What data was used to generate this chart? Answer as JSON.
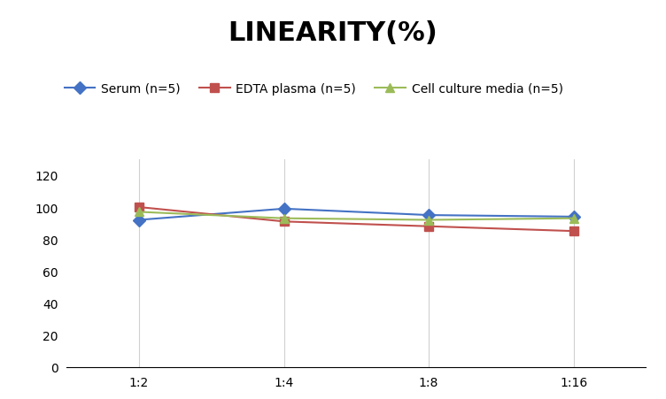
{
  "title": "LINEARITY(%)",
  "x_labels": [
    "1:2",
    "1:4",
    "1:8",
    "1:16"
  ],
  "x_positions": [
    0,
    1,
    2,
    3
  ],
  "series": [
    {
      "label": "Serum (n=5)",
      "values": [
        92,
        99,
        95,
        94
      ],
      "color": "#4472C4",
      "marker": "D",
      "markersize": 7,
      "linewidth": 1.5
    },
    {
      "label": "EDTA plasma (n=5)",
      "values": [
        100,
        91,
        88,
        85
      ],
      "color": "#C0504D",
      "marker": "s",
      "markersize": 7,
      "linewidth": 1.5
    },
    {
      "label": "Cell culture media (n=5)",
      "values": [
        97,
        93,
        92,
        93
      ],
      "color": "#9BBB59",
      "marker": "^",
      "markersize": 7,
      "linewidth": 1.5
    }
  ],
  "ylim": [
    0,
    130
  ],
  "yticks": [
    0,
    20,
    40,
    60,
    80,
    100,
    120
  ],
  "grid_color": "#D0D0D0",
  "background_color": "#FFFFFF",
  "title_fontsize": 22,
  "legend_fontsize": 10,
  "tick_fontsize": 10
}
